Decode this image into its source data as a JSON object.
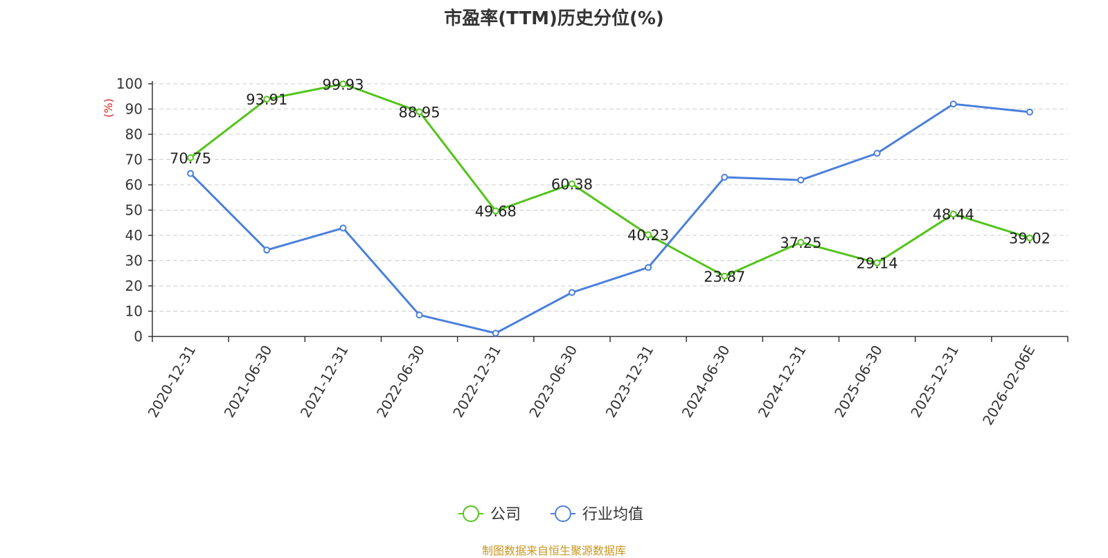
{
  "chart_data": {
    "type": "line",
    "title": "市盈率(TTM)历史分位(%)",
    "ylabel": "(%)",
    "ylim": [
      0,
      100
    ],
    "y_ticks": [
      0,
      10,
      20,
      30,
      40,
      50,
      60,
      70,
      80,
      90,
      100
    ],
    "grid": true,
    "legend_position": "bottom",
    "categories": [
      "2020-12-31",
      "2021-06-30",
      "2021-12-31",
      "2022-06-30",
      "2022-12-31",
      "2023-06-30",
      "2023-12-31",
      "2024-06-30",
      "2024-12-31",
      "2025-06-30",
      "2025-12-31",
      "2026-02-06E"
    ],
    "series": [
      {
        "name": "公司",
        "color": "#52c41a",
        "show_labels": true,
        "values": [
          70.75,
          93.91,
          99.93,
          88.95,
          49.68,
          60.38,
          40.23,
          23.87,
          37.25,
          29.14,
          48.44,
          39.02
        ]
      },
      {
        "name": "行业均值",
        "color": "#4a7fdc",
        "show_labels": false,
        "values": [
          64.5,
          34.2,
          42.9,
          8.5,
          1.3,
          17.4,
          27.3,
          63.0,
          61.9,
          72.5,
          92.0,
          88.8
        ]
      }
    ],
    "source": "制图数据来自恒生聚源数据库"
  }
}
